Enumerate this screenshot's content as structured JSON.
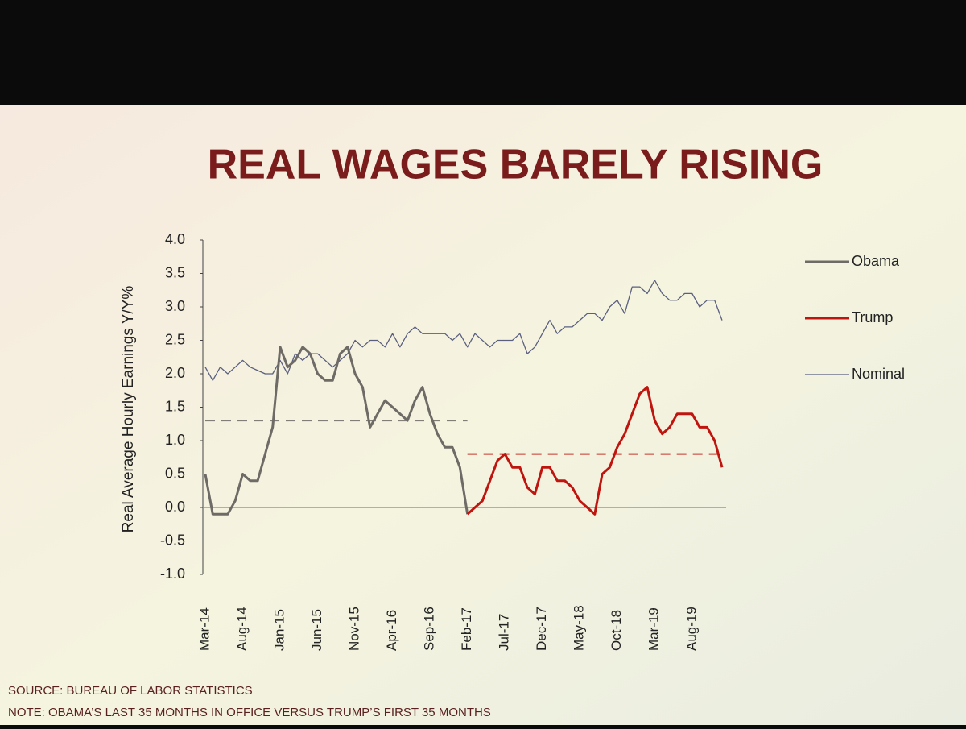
{
  "chart_data": {
    "type": "line",
    "title": "REAL WAGES BARELY RISING",
    "y_label": "Real Average Hourly Earnings Y/Y%",
    "source": "SOURCE: BUREAU OF LABOR STATISTICS",
    "note": "NOTE: OBAMA’S LAST 35 MONTHS IN OFFICE VERSUS TRUMP’S FIRST 35 MONTHS",
    "categories": [
      "Mar-14",
      null,
      null,
      null,
      null,
      "Aug-14",
      null,
      null,
      null,
      null,
      "Jan-15",
      null,
      null,
      null,
      null,
      "Jun-15",
      null,
      null,
      null,
      null,
      "Nov-15",
      null,
      null,
      null,
      null,
      "Apr-16",
      null,
      null,
      null,
      null,
      "Sep-16",
      null,
      null,
      null,
      null,
      "Feb-17",
      null,
      null,
      null,
      null,
      "Jul-17",
      null,
      null,
      null,
      null,
      "Dec-17",
      null,
      null,
      null,
      null,
      "May-18",
      null,
      null,
      null,
      null,
      "Oct-18",
      null,
      null,
      null,
      null,
      "Mar-19",
      null,
      null,
      null,
      null,
      "Aug-19",
      null,
      null,
      null,
      null
    ],
    "ylim": [
      -1,
      4
    ],
    "yticks": [
      {
        "value": -1,
        "label": "-1.0"
      },
      {
        "value": -0.5,
        "label": "-0.5"
      },
      {
        "value": 0,
        "label": "0.0"
      },
      {
        "value": 0.5,
        "label": "0.5"
      },
      {
        "value": 1,
        "label": "1.0"
      },
      {
        "value": 1.5,
        "label": "1.5"
      },
      {
        "value": 2,
        "label": "2.0"
      },
      {
        "value": 2.5,
        "label": "2.5"
      },
      {
        "value": 3,
        "label": "3.0"
      },
      {
        "value": 3.5,
        "label": "3.5"
      },
      {
        "value": 4,
        "label": "4.0"
      }
    ],
    "zero_line": true,
    "legend": "right",
    "series": [
      {
        "name": "Obama",
        "color": "#6e6a66",
        "width": 3,
        "mean": 1.3,
        "values": [
          0.5,
          -0.1,
          -0.1,
          -0.1,
          0.1,
          0.5,
          0.4,
          0.4,
          0.8,
          1.2,
          2.4,
          2.1,
          2.2,
          2.4,
          2.3,
          2.0,
          1.9,
          1.9,
          2.3,
          2.4,
          2.0,
          1.8,
          1.2,
          1.4,
          1.6,
          1.5,
          1.4,
          1.3,
          1.6,
          1.8,
          1.4,
          1.1,
          0.9,
          0.9,
          0.6,
          -0.1,
          null,
          null,
          null,
          null,
          null,
          null,
          null,
          null,
          null,
          null,
          null,
          null,
          null,
          null,
          null,
          null,
          null,
          null,
          null,
          null,
          null,
          null,
          null,
          null,
          null,
          null,
          null,
          null,
          null,
          null,
          null,
          null,
          null,
          null
        ]
      },
      {
        "name": "Trump",
        "color": "#c0150f",
        "width": 3,
        "mean": 0.8,
        "values": [
          null,
          null,
          null,
          null,
          null,
          null,
          null,
          null,
          null,
          null,
          null,
          null,
          null,
          null,
          null,
          null,
          null,
          null,
          null,
          null,
          null,
          null,
          null,
          null,
          null,
          null,
          null,
          null,
          null,
          null,
          null,
          null,
          null,
          null,
          null,
          -0.1,
          0.0,
          0.1,
          0.4,
          0.7,
          0.8,
          0.6,
          0.6,
          0.3,
          0.2,
          0.6,
          0.6,
          0.4,
          0.4,
          0.3,
          0.1,
          0.0,
          -0.1,
          0.5,
          0.6,
          0.9,
          1.1,
          1.4,
          1.7,
          1.8,
          1.3,
          1.1,
          1.2,
          1.4,
          1.4,
          1.4,
          1.2,
          1.2,
          1.0,
          0.6
        ]
      },
      {
        "name": "Nominal",
        "color": "#5a5f80",
        "width": 1.3,
        "values": [
          2.1,
          1.9,
          2.1,
          2.0,
          2.1,
          2.2,
          2.1,
          2.05,
          2.0,
          2.0,
          2.2,
          2.0,
          2.3,
          2.2,
          2.3,
          2.3,
          2.2,
          2.1,
          2.2,
          2.3,
          2.5,
          2.4,
          2.5,
          2.5,
          2.4,
          2.6,
          2.4,
          2.6,
          2.7,
          2.6,
          2.6,
          2.6,
          2.6,
          2.5,
          2.6,
          2.4,
          2.6,
          2.5,
          2.4,
          2.5,
          2.5,
          2.5,
          2.6,
          2.3,
          2.4,
          2.6,
          2.8,
          2.6,
          2.7,
          2.7,
          2.8,
          2.9,
          2.9,
          2.8,
          3.0,
          3.1,
          2.9,
          3.3,
          3.3,
          3.2,
          3.4,
          3.2,
          3.1,
          3.1,
          3.2,
          3.2,
          3.0,
          3.1,
          3.1,
          2.8
        ]
      }
    ]
  }
}
